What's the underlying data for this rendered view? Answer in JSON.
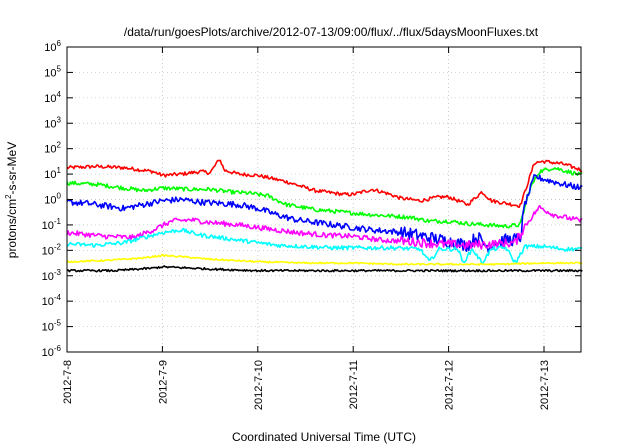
{
  "chart_data": {
    "type": "line",
    "title": "/data/run/goesPlots/archive/2012-07-13/09:00/flux/../flux/5daysMoonFluxes.txt",
    "xlabel": "Coordinated Universal Time (UTC)",
    "ylabel": {
      "base": "protons/cm",
      "sup": "2",
      "rest": "-s-sr-MeV"
    },
    "x_ticks": [
      "2012-7-8",
      "2012-7-9",
      "2012-7-10",
      "2012-7-11",
      "2012-7-12",
      "2012-7-13"
    ],
    "x_range_days": [
      0,
      5.4
    ],
    "y_scale": "log",
    "y_ticks": [
      {
        "exp": -6,
        "label": "10",
        "sup": "-6"
      },
      {
        "exp": -5,
        "label": "10",
        "sup": "-5"
      },
      {
        "exp": -4,
        "label": "10",
        "sup": "-4"
      },
      {
        "exp": -3,
        "label": "10",
        "sup": "-3"
      },
      {
        "exp": -2,
        "label": "10",
        "sup": "-2"
      },
      {
        "exp": -1,
        "label": "10",
        "sup": "-1"
      },
      {
        "exp": 0,
        "label": "10",
        "sup": "0"
      },
      {
        "exp": 1,
        "label": "10",
        "sup": "1"
      },
      {
        "exp": 2,
        "label": "10",
        "sup": "2"
      },
      {
        "exp": 3,
        "label": "10",
        "sup": "3"
      },
      {
        "exp": 4,
        "label": "10",
        "sup": "4"
      },
      {
        "exp": 5,
        "label": "10",
        "sup": "5"
      },
      {
        "exp": 6,
        "label": "10",
        "sup": "6"
      }
    ],
    "ylim_exp": [
      -6,
      6
    ],
    "grid": true,
    "series": [
      {
        "color": "#ff0000",
        "points": [
          [
            0,
            1.25
          ],
          [
            0.3,
            1.3
          ],
          [
            0.6,
            1.25
          ],
          [
            0.9,
            1.1
          ],
          [
            1.0,
            0.95
          ],
          [
            1.2,
            1.0
          ],
          [
            1.4,
            1.1
          ],
          [
            1.5,
            1.05
          ],
          [
            1.6,
            1.6
          ],
          [
            1.65,
            1.15
          ],
          [
            1.8,
            1.0
          ],
          [
            2.0,
            0.95
          ],
          [
            2.3,
            0.7
          ],
          [
            2.6,
            0.35
          ],
          [
            2.9,
            0.2
          ],
          [
            3.0,
            0.2
          ],
          [
            3.2,
            0.4
          ],
          [
            3.35,
            0.25
          ],
          [
            3.5,
            0.05
          ],
          [
            3.7,
            -0.05
          ],
          [
            3.9,
            0.1
          ],
          [
            4.0,
            0.1
          ],
          [
            4.2,
            -0.2
          ],
          [
            4.35,
            0.3
          ],
          [
            4.45,
            -0.05
          ],
          [
            4.6,
            -0.15
          ],
          [
            4.75,
            -0.25
          ],
          [
            4.8,
            0.3
          ],
          [
            4.9,
            1.45
          ],
          [
            5.0,
            1.5
          ],
          [
            5.2,
            1.4
          ],
          [
            5.4,
            1.15
          ]
        ]
      },
      {
        "color": "#00ff00",
        "points": [
          [
            0,
            0.65
          ],
          [
            0.3,
            0.6
          ],
          [
            0.6,
            0.45
          ],
          [
            0.8,
            0.35
          ],
          [
            1.0,
            0.45
          ],
          [
            1.3,
            0.4
          ],
          [
            1.5,
            0.4
          ],
          [
            1.7,
            0.3
          ],
          [
            1.9,
            0.25
          ],
          [
            2.1,
            0.15
          ],
          [
            2.3,
            -0.2
          ],
          [
            2.6,
            -0.4
          ],
          [
            2.9,
            -0.5
          ],
          [
            3.2,
            -0.6
          ],
          [
            3.4,
            -0.65
          ],
          [
            3.6,
            -0.7
          ],
          [
            3.8,
            -0.85
          ],
          [
            4.0,
            -0.85
          ],
          [
            4.2,
            -0.95
          ],
          [
            4.4,
            -1.0
          ],
          [
            4.6,
            -1.05
          ],
          [
            4.75,
            -1.0
          ],
          [
            4.85,
            0.4
          ],
          [
            4.95,
            1.1
          ],
          [
            5.1,
            1.25
          ],
          [
            5.4,
            0.95
          ]
        ]
      },
      {
        "color": "#0000ff",
        "points": [
          [
            0,
            -0.1
          ],
          [
            0.2,
            -0.15
          ],
          [
            0.4,
            -0.25
          ],
          [
            0.6,
            -0.35
          ],
          [
            0.8,
            -0.2
          ],
          [
            1.0,
            -0.05
          ],
          [
            1.2,
            0.0
          ],
          [
            1.4,
            -0.1
          ],
          [
            1.6,
            -0.15
          ],
          [
            1.8,
            -0.2
          ],
          [
            2.0,
            -0.35
          ],
          [
            2.2,
            -0.6
          ],
          [
            2.4,
            -0.8
          ],
          [
            2.6,
            -0.9
          ],
          [
            2.8,
            -1.0
          ],
          [
            3.0,
            -1.1
          ],
          [
            3.2,
            -1.2
          ],
          [
            3.4,
            -1.25
          ],
          [
            3.6,
            -1.35
          ],
          [
            3.8,
            -1.5
          ],
          [
            4.0,
            -1.65
          ],
          [
            4.2,
            -1.8
          ],
          [
            4.3,
            -1.45
          ],
          [
            4.4,
            -1.85
          ],
          [
            4.5,
            -1.7
          ],
          [
            4.6,
            -1.6
          ],
          [
            4.75,
            -1.55
          ],
          [
            4.8,
            -0.2
          ],
          [
            4.9,
            0.9
          ],
          [
            5.0,
            0.8
          ],
          [
            5.2,
            0.6
          ],
          [
            5.4,
            0.45
          ]
        ]
      },
      {
        "color": "#ff00ff",
        "points": [
          [
            0,
            -1.3
          ],
          [
            0.4,
            -1.45
          ],
          [
            0.7,
            -1.5
          ],
          [
            0.9,
            -1.2
          ],
          [
            1.1,
            -0.85
          ],
          [
            1.3,
            -0.8
          ],
          [
            1.5,
            -0.9
          ],
          [
            1.8,
            -1.0
          ],
          [
            2.1,
            -1.15
          ],
          [
            2.4,
            -1.3
          ],
          [
            2.7,
            -1.4
          ],
          [
            3.0,
            -1.45
          ],
          [
            3.3,
            -1.6
          ],
          [
            3.6,
            -1.65
          ],
          [
            3.9,
            -1.75
          ],
          [
            4.2,
            -1.8
          ],
          [
            4.5,
            -1.75
          ],
          [
            4.7,
            -1.7
          ],
          [
            4.8,
            -1.05
          ],
          [
            4.95,
            -0.3
          ],
          [
            5.1,
            -0.6
          ],
          [
            5.4,
            -0.85
          ]
        ]
      },
      {
        "color": "#00ffff",
        "points": [
          [
            0,
            -1.75
          ],
          [
            0.3,
            -1.8
          ],
          [
            0.6,
            -1.7
          ],
          [
            0.8,
            -1.5
          ],
          [
            1.0,
            -1.3
          ],
          [
            1.2,
            -1.2
          ],
          [
            1.4,
            -1.4
          ],
          [
            1.6,
            -1.5
          ],
          [
            1.9,
            -1.65
          ],
          [
            2.2,
            -1.8
          ],
          [
            2.5,
            -1.85
          ],
          [
            2.8,
            -1.9
          ],
          [
            3.1,
            -1.9
          ],
          [
            3.4,
            -1.9
          ],
          [
            3.7,
            -1.95
          ],
          [
            3.8,
            -2.45
          ],
          [
            3.9,
            -1.95
          ],
          [
            4.1,
            -1.95
          ],
          [
            4.15,
            -2.5
          ],
          [
            4.25,
            -1.95
          ],
          [
            4.35,
            -2.5
          ],
          [
            4.45,
            -1.95
          ],
          [
            4.6,
            -1.9
          ],
          [
            4.7,
            -2.5
          ],
          [
            4.8,
            -1.85
          ],
          [
            5.0,
            -1.85
          ],
          [
            5.2,
            -1.95
          ],
          [
            5.4,
            -1.95
          ]
        ]
      },
      {
        "color": "#ffff00",
        "points": [
          [
            0,
            -2.45
          ],
          [
            0.4,
            -2.4
          ],
          [
            0.8,
            -2.3
          ],
          [
            1.0,
            -2.2
          ],
          [
            1.2,
            -2.25
          ],
          [
            1.5,
            -2.35
          ],
          [
            2.0,
            -2.45
          ],
          [
            2.5,
            -2.5
          ],
          [
            3.0,
            -2.5
          ],
          [
            3.5,
            -2.55
          ],
          [
            4.0,
            -2.55
          ],
          [
            4.5,
            -2.55
          ],
          [
            5.0,
            -2.5
          ],
          [
            5.4,
            -2.5
          ]
        ]
      },
      {
        "color": "#000000",
        "points": [
          [
            0,
            -2.8
          ],
          [
            0.5,
            -2.8
          ],
          [
            0.9,
            -2.7
          ],
          [
            1.0,
            -2.65
          ],
          [
            1.3,
            -2.7
          ],
          [
            1.6,
            -2.75
          ],
          [
            2.0,
            -2.8
          ],
          [
            2.5,
            -2.8
          ],
          [
            3.0,
            -2.8
          ],
          [
            3.5,
            -2.8
          ],
          [
            4.0,
            -2.8
          ],
          [
            4.5,
            -2.8
          ],
          [
            5.0,
            -2.8
          ],
          [
            5.4,
            -2.8
          ]
        ]
      }
    ]
  }
}
